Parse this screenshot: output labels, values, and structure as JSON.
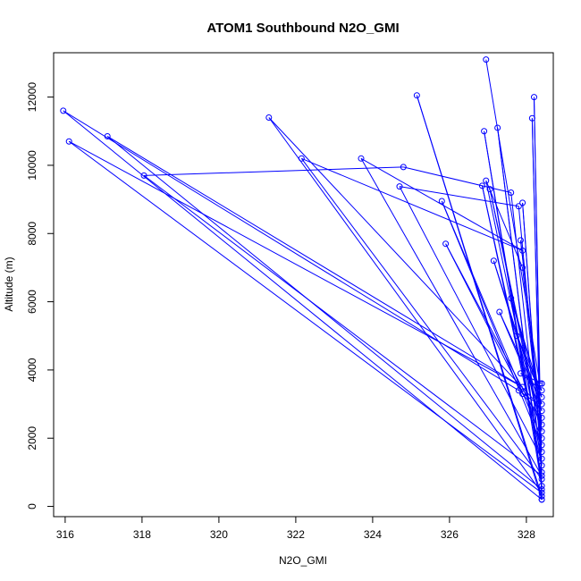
{
  "chart_data": {
    "type": "line",
    "title": "ATOM1 Southbound N2O_GMI",
    "xlabel": "N2O_GMI",
    "ylabel": "Altitude (m)",
    "xlim": [
      315.7,
      328.7
    ],
    "ylim": [
      -300,
      13300
    ],
    "x_ticks": [
      316,
      318,
      320,
      322,
      324,
      326,
      328
    ],
    "y_ticks": [
      0,
      2000,
      4000,
      6000,
      8000,
      10000,
      12000
    ],
    "series_color": "#0000ff",
    "marker": "open-circle",
    "grid": false,
    "series": [
      {
        "x": [
          326.95,
          328.35,
          328.2,
          328.4,
          325.15,
          328.4,
          328.15,
          328.4,
          315.95,
          327.8,
          328.3,
          321.3,
          328.4,
          316.1,
          327.9,
          317.1,
          328.4,
          327.25,
          328.4,
          326.9,
          328.4,
          322.15,
          327.9,
          323.7,
          328.4,
          318.05,
          324.8,
          327.6,
          328.4,
          327.9,
          328.4,
          326.85,
          328.4,
          324.7,
          327.8,
          328.4,
          326.95,
          327.9,
          328.4,
          325.8,
          328.4,
          327.05,
          328.4,
          327.85,
          328.4,
          325.9,
          327.9,
          328.4,
          327.15,
          328.4,
          327.3,
          328.4,
          327.6,
          328.4,
          327.75,
          328.4,
          327.85,
          328.4,
          328.4
        ],
        "y": [
          13100,
          3600,
          12000,
          200,
          12050,
          300,
          11380,
          200,
          11600,
          3400,
          3000,
          11400,
          400,
          10700,
          3500,
          10850,
          500,
          11100,
          600,
          11000,
          800,
          10200,
          7500,
          10200,
          900,
          9700,
          9950,
          9200,
          1000,
          8900,
          1200,
          9400,
          1400,
          9380,
          8800,
          1600,
          9550,
          7000,
          1800,
          8950,
          2000,
          9300,
          2200,
          7800,
          2400,
          7700,
          3300,
          2600,
          7200,
          2800,
          5700,
          3000,
          6100,
          3200,
          5000,
          3400,
          3900,
          3600,
          3600
        ]
      }
    ]
  }
}
